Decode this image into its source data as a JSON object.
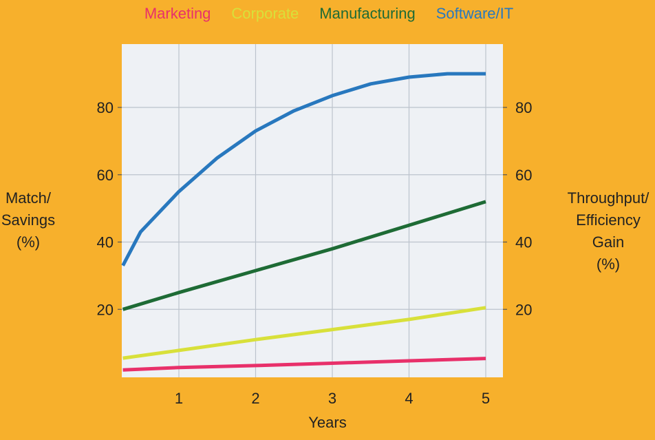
{
  "chart_data": {
    "type": "line",
    "xlabel": "Years",
    "ylabel_left": [
      "Match/",
      "Savings",
      "(%)"
    ],
    "ylabel_right": [
      "Throughput/",
      "Efficiency",
      "Gain",
      "(%)"
    ],
    "xlim": [
      0.27,
      5.25
    ],
    "ylim": [
      0,
      100
    ],
    "x_ticks": [
      1,
      2,
      3,
      4,
      5
    ],
    "y_ticks": [
      20,
      40,
      60,
      80
    ],
    "grid": true,
    "legend_position": "top",
    "series": [
      {
        "name": "Marketing",
        "color": "#E8306A",
        "x": [
          0.27,
          1,
          2,
          3,
          4,
          5
        ],
        "y": [
          2,
          2.7,
          3.3,
          4,
          4.7,
          5.4
        ]
      },
      {
        "name": "Corporate",
        "color": "#D8E03A",
        "x": [
          0.27,
          1,
          2,
          3,
          4,
          5
        ],
        "y": [
          5.5,
          7.8,
          11,
          14,
          17,
          20.5
        ]
      },
      {
        "name": "Manufacturing",
        "color": "#1E6B35",
        "x": [
          0.27,
          1,
          2,
          3,
          4,
          5
        ],
        "y": [
          20,
          25,
          31.5,
          38,
          45,
          52
        ]
      },
      {
        "name": "Software/IT",
        "color": "#2878BE",
        "x": [
          0.27,
          0.5,
          1,
          1.5,
          2,
          2.5,
          3,
          3.5,
          4,
          4.5,
          5
        ],
        "y": [
          33,
          43,
          55,
          65,
          73,
          79,
          83.5,
          87,
          89,
          90,
          90
        ]
      }
    ]
  }
}
